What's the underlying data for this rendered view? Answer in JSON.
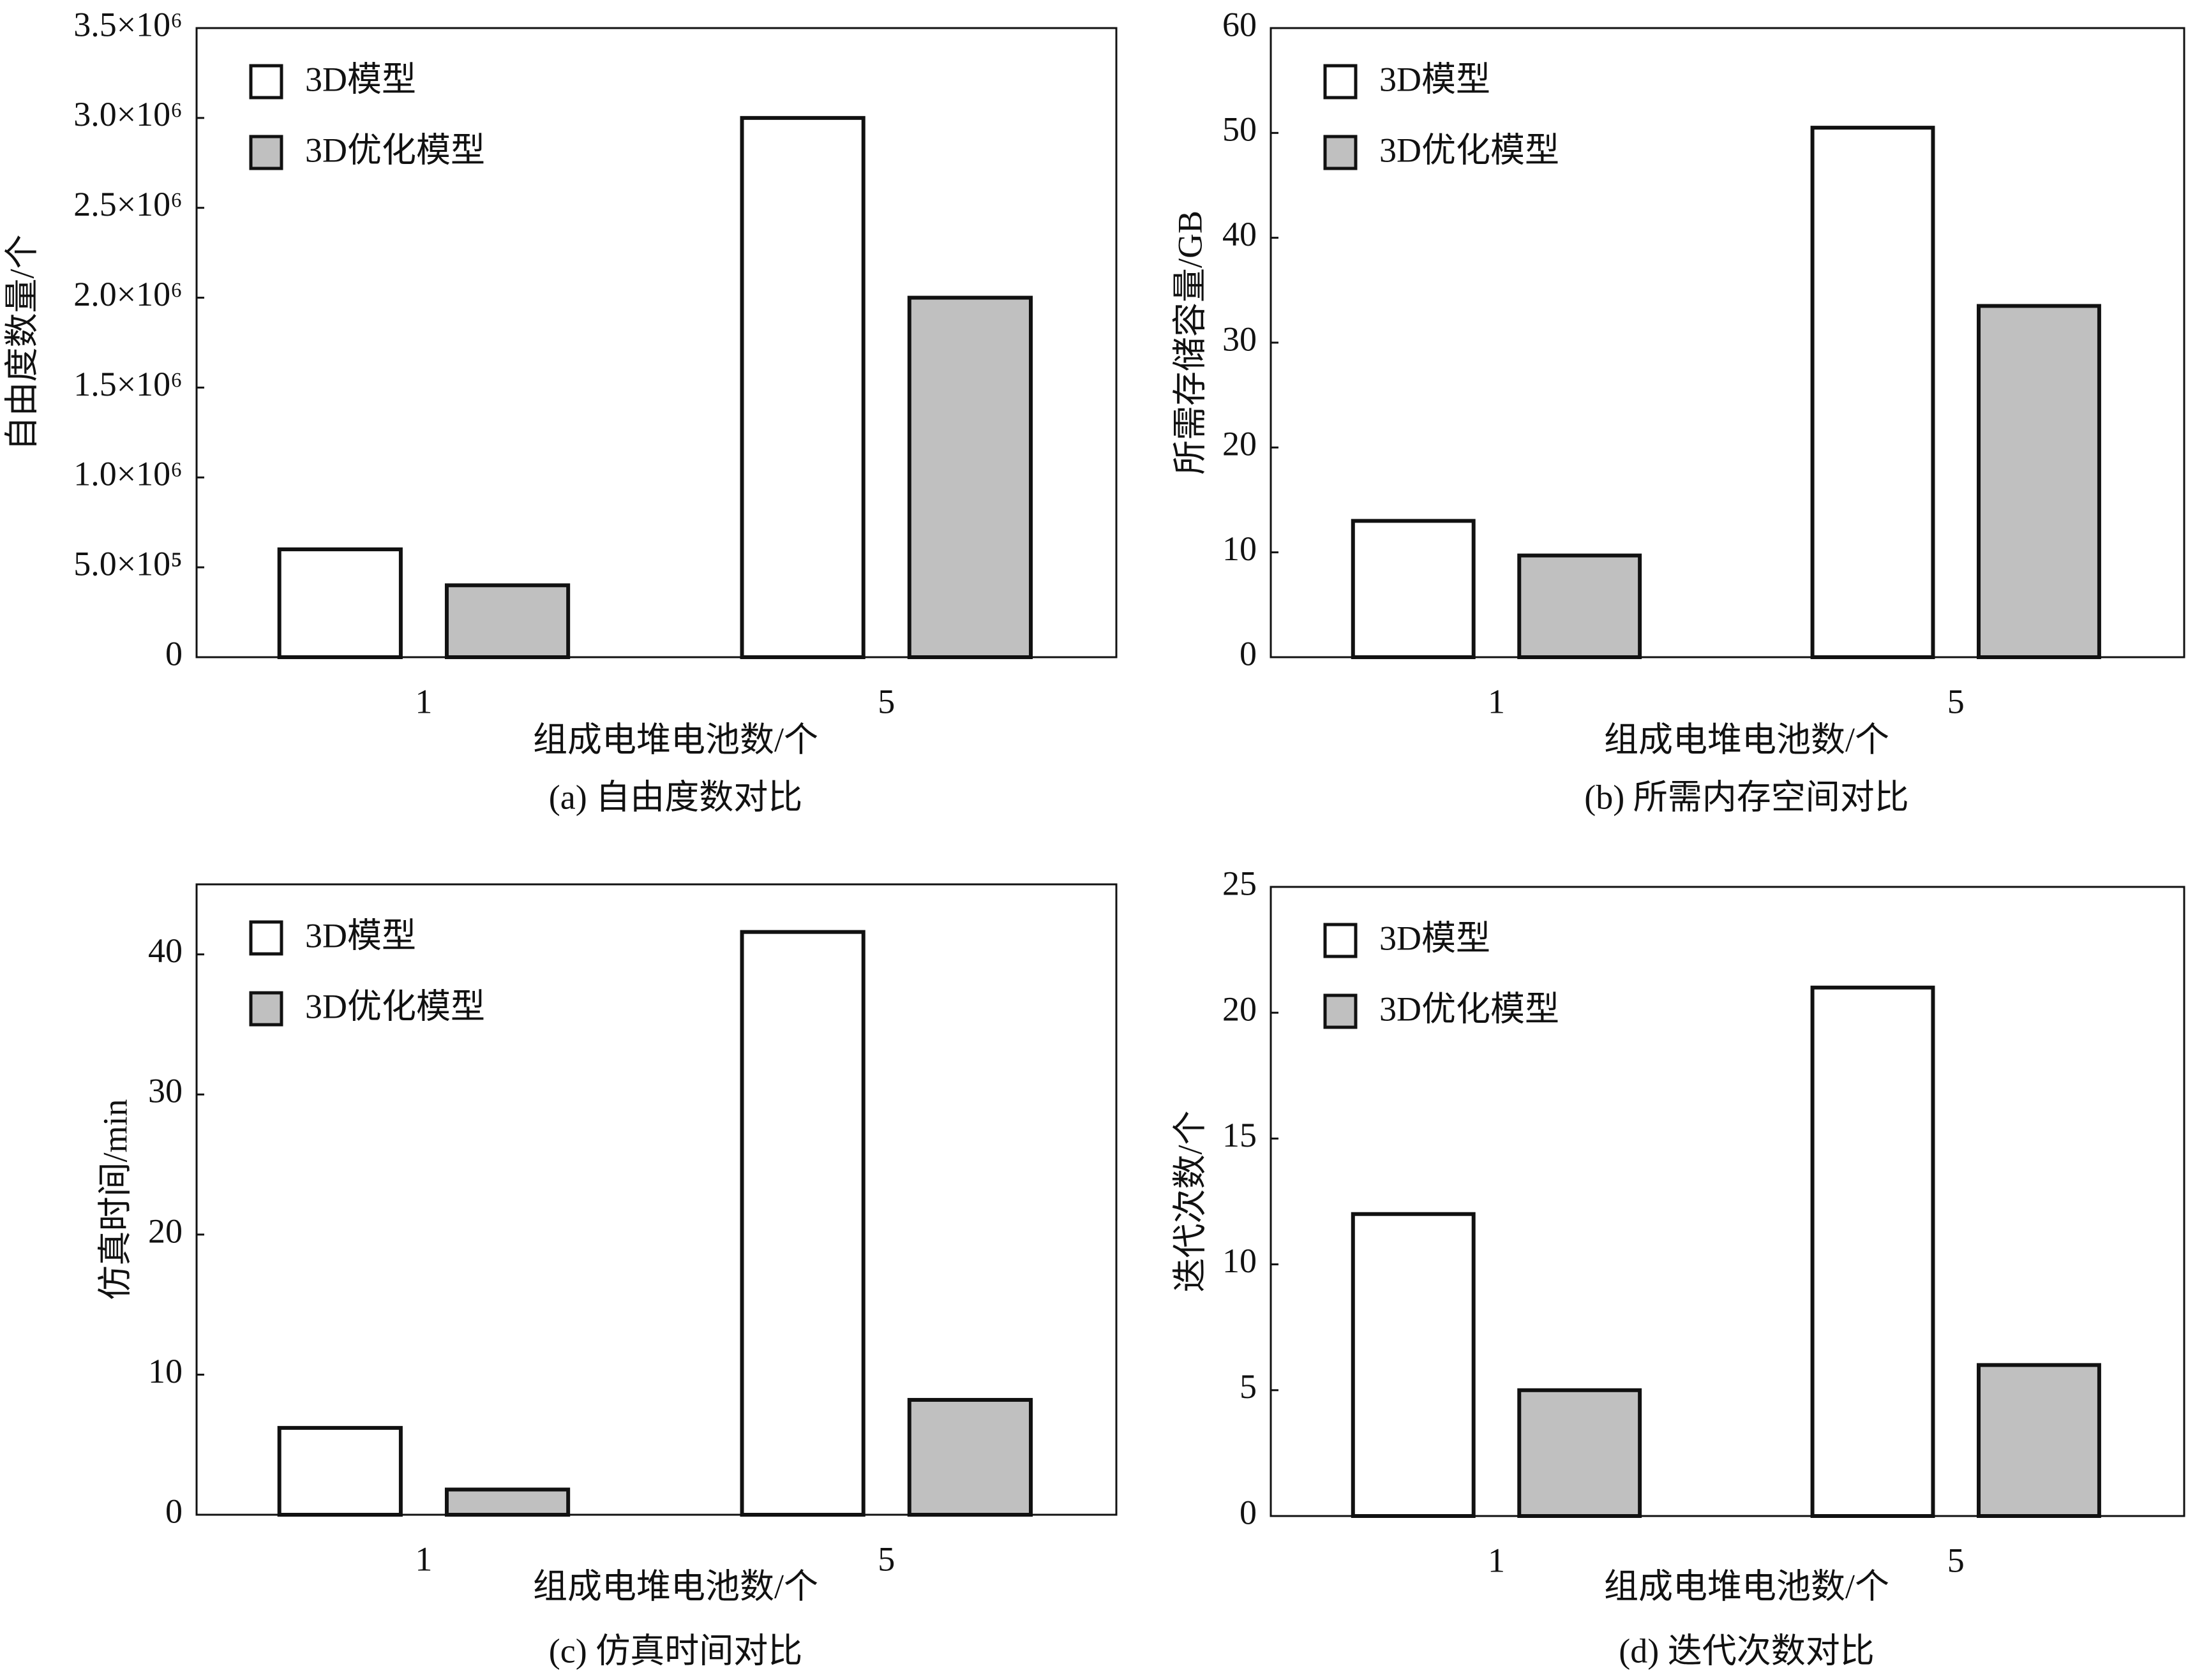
{
  "chart_data": [
    {
      "type": "bar",
      "title": "(a) 自由度数对比",
      "x_label": "组成电堆电池数/个",
      "y_label": "自由度数量/个",
      "categories": [
        "1",
        "5"
      ],
      "series": [
        {
          "name": "3D模型",
          "color": "#ffffff",
          "values": [
            600000,
            3000000
          ]
        },
        {
          "name": "3D优化模型",
          "color": "#c0c0c0",
          "values": [
            400000,
            2000000
          ]
        }
      ],
      "ylim": [
        0,
        3500000
      ],
      "yticks": [
        0,
        {
          "value": 500000,
          "label": "5.0×10⁵"
        },
        {
          "value": 1000000,
          "label": "1.0×10⁶"
        },
        {
          "value": 1500000,
          "label": "1.5×10⁶"
        },
        {
          "value": 2000000,
          "label": "2.0×10⁶"
        },
        {
          "value": 2500000,
          "label": "2.5×10⁶"
        },
        {
          "value": 3000000,
          "label": "3.0×10⁶"
        },
        {
          "value": 3500000,
          "label": "3.5×10⁶"
        }
      ],
      "legend": "upper left"
    },
    {
      "type": "bar",
      "title": "(b) 所需内存空间对比",
      "x_label": "组成电堆电池数/个",
      "y_label": "所需存储容量/GB",
      "categories": [
        "1",
        "5"
      ],
      "series": [
        {
          "name": "3D模型",
          "color": "#ffffff",
          "values": [
            13,
            50.5
          ]
        },
        {
          "name": "3D优化模型",
          "color": "#c0c0c0",
          "values": [
            9.7,
            33.5
          ]
        }
      ],
      "ylim": [
        0,
        60
      ],
      "yticks": [
        0,
        10,
        20,
        30,
        40,
        50,
        60
      ],
      "legend": "upper left"
    },
    {
      "type": "bar",
      "title": "(c) 仿真时间对比",
      "x_label": "组成电堆电池数/个",
      "y_label": "仿真时间/min",
      "categories": [
        "1",
        "5"
      ],
      "series": [
        {
          "name": "3D模型",
          "color": "#ffffff",
          "values": [
            6.2,
            41.6
          ]
        },
        {
          "name": "3D优化模型",
          "color": "#c0c0c0",
          "values": [
            1.8,
            8.2
          ]
        }
      ],
      "ylim": [
        0,
        45
      ],
      "yticks": [
        0,
        10,
        20,
        30,
        40
      ],
      "legend": "upper left"
    },
    {
      "type": "bar",
      "title": "(d) 迭代次数对比",
      "x_label": "组成电堆电池数/个",
      "y_label": "迭代次数/个",
      "categories": [
        "1",
        "5"
      ],
      "series": [
        {
          "name": "3D模型",
          "color": "#ffffff",
          "values": [
            12,
            21
          ]
        },
        {
          "name": "3D优化模型",
          "color": "#c0c0c0",
          "values": [
            5,
            6
          ]
        }
      ],
      "ylim": [
        0,
        25
      ],
      "yticks": [
        0,
        5,
        10,
        15,
        20,
        25
      ],
      "legend": "upper left"
    }
  ]
}
